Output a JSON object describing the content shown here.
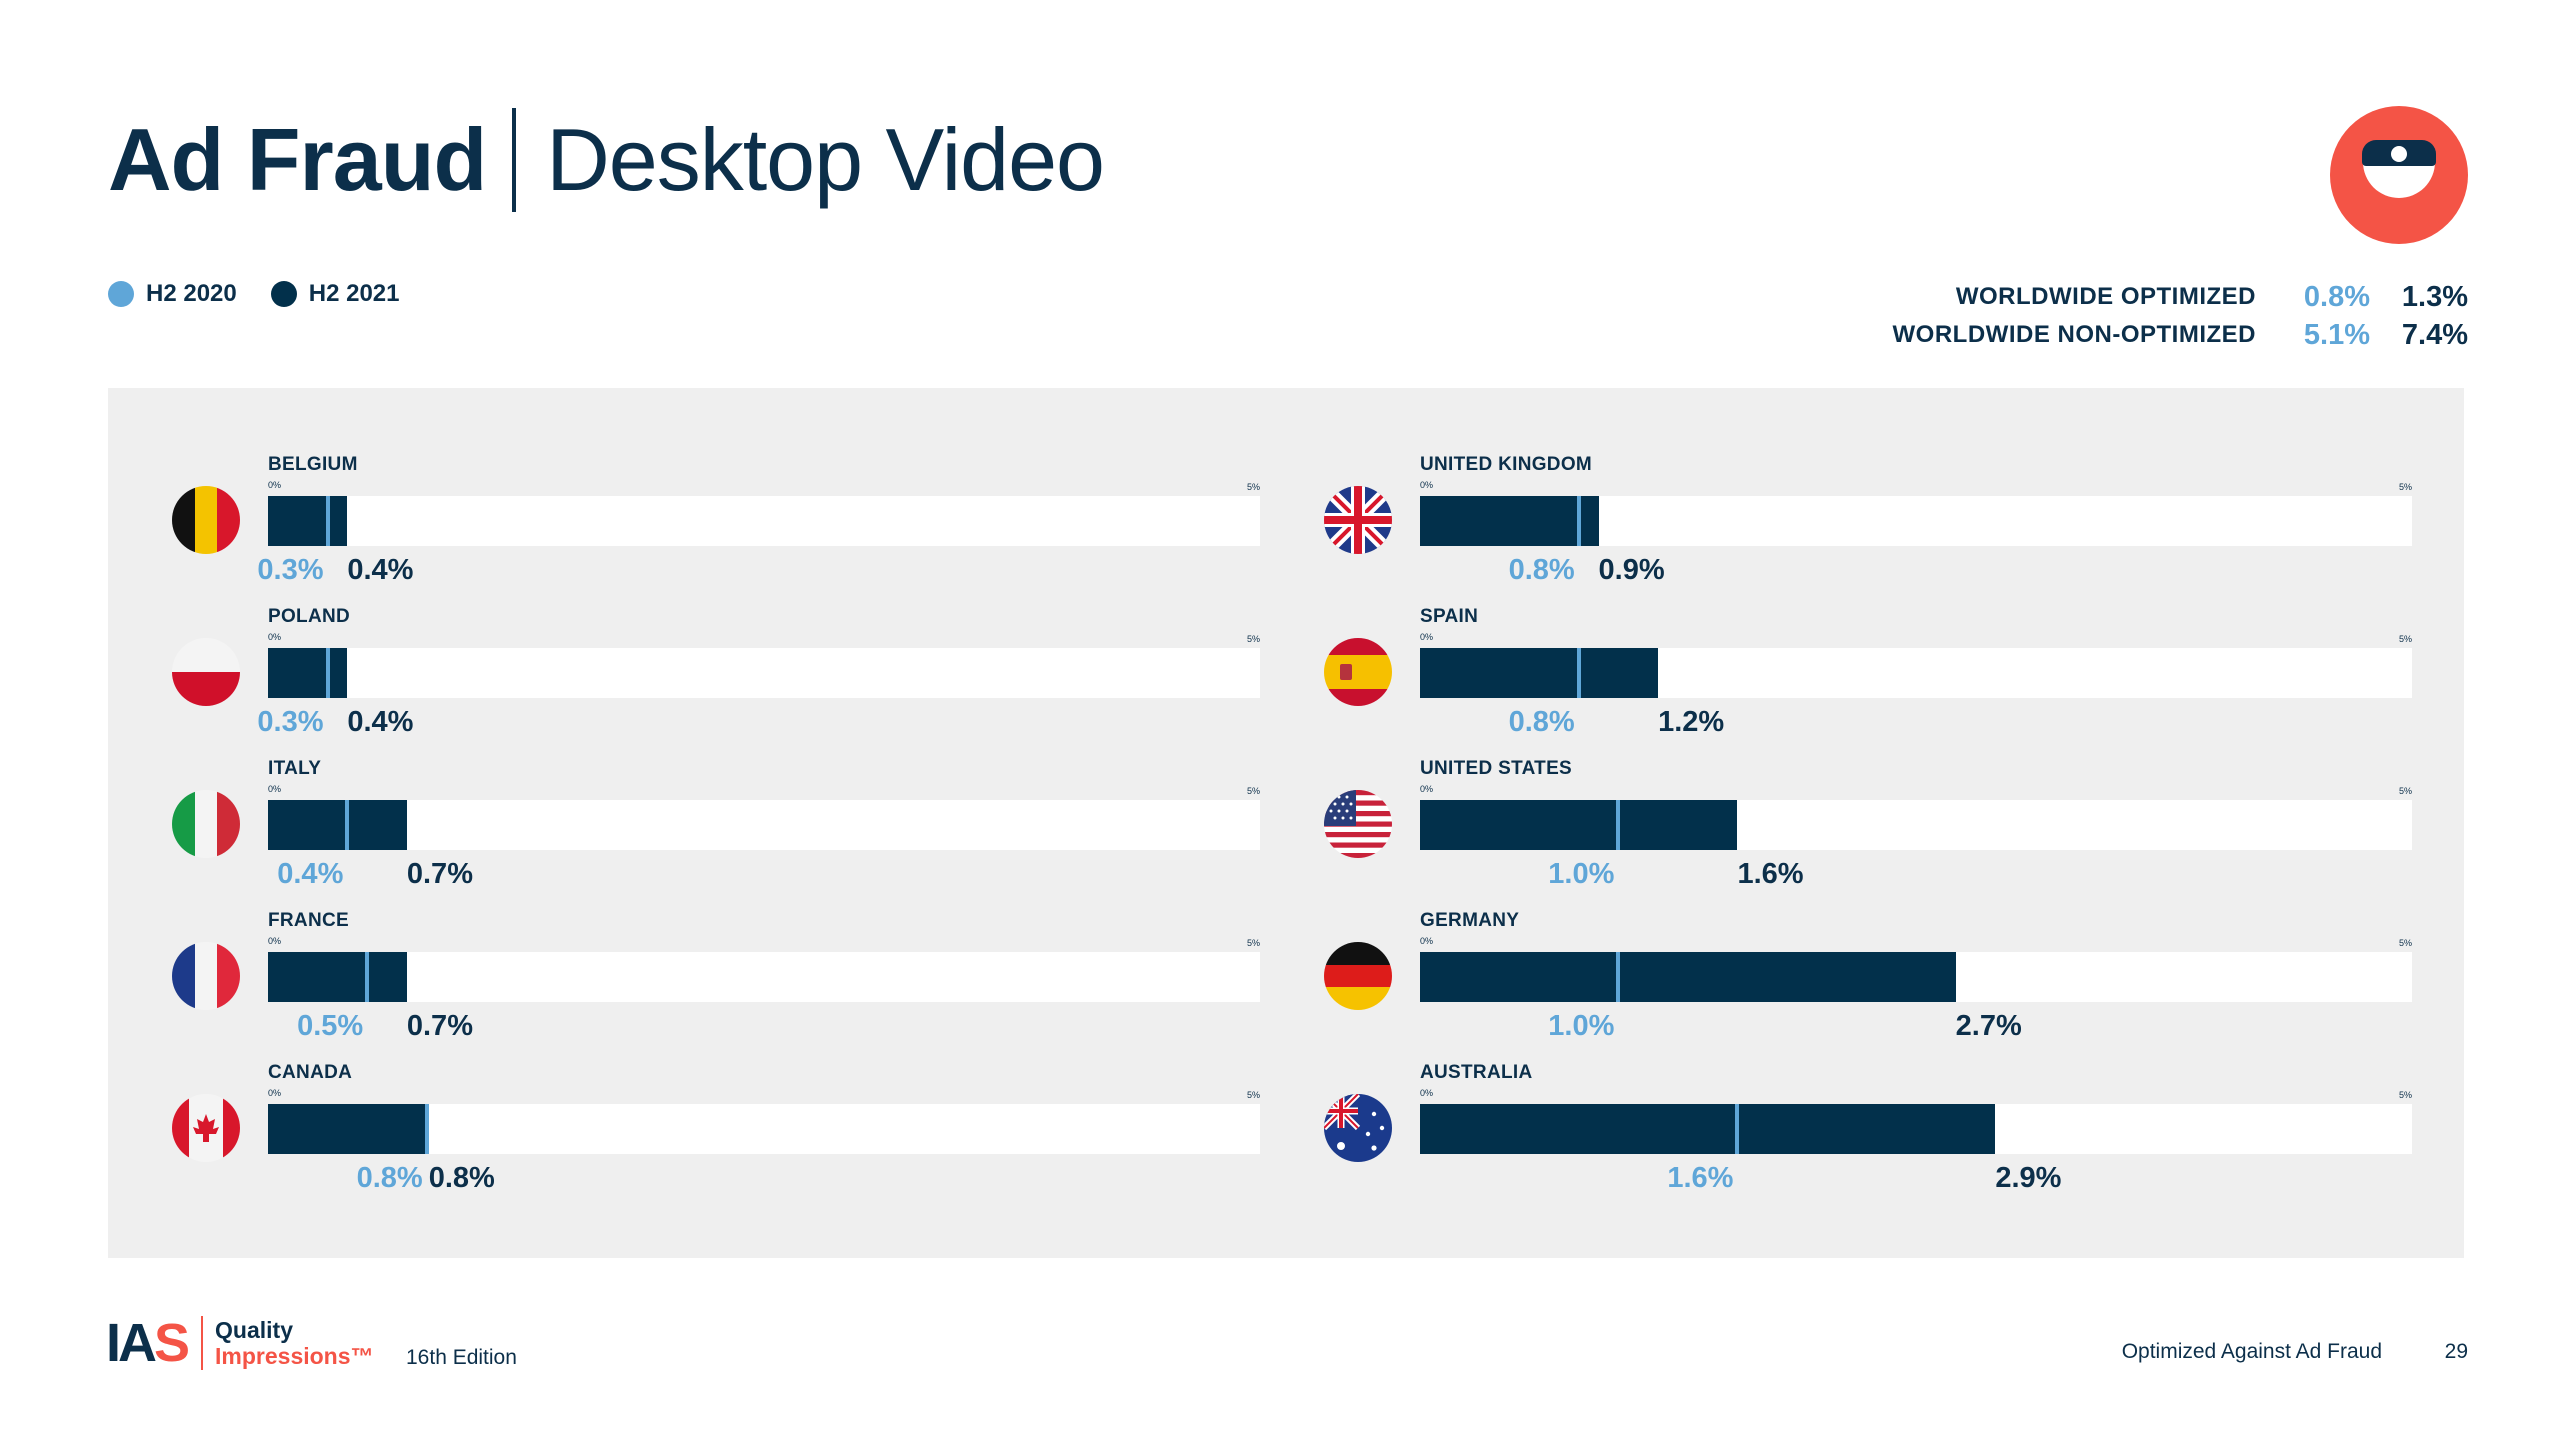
{
  "header": {
    "title_main": "Ad Fraud",
    "title_sub": "Desktop Video"
  },
  "legend": [
    {
      "label": "H2 2020",
      "color": "#5fa6d8"
    },
    {
      "label": "H2 2021",
      "color": "#02304b"
    }
  ],
  "worldwide": [
    {
      "label": "WORLDWIDE OPTIMIZED",
      "h2_2020": "0.8%",
      "h2_2021": "1.3%"
    },
    {
      "label": "WORLDWIDE NON-OPTIMIZED",
      "h2_2020": "5.1%",
      "h2_2021": "7.4%"
    }
  ],
  "chart_data": {
    "type": "bar",
    "axis": {
      "min_label": "0%",
      "max_label": "5%",
      "xlim": [
        0,
        5
      ]
    },
    "series": [
      {
        "name": "H2 2020",
        "color": "#5fa6d8"
      },
      {
        "name": "H2 2021",
        "color": "#02304b"
      }
    ],
    "columns": [
      [
        {
          "country": "BELGIUM",
          "flag": "belgium-flag-icon",
          "h2_2020": 0.3,
          "h2_2021": 0.4,
          "h2_2020_label": "0.3%",
          "h2_2021_label": "0.4%"
        },
        {
          "country": "POLAND",
          "flag": "poland-flag-icon",
          "h2_2020": 0.3,
          "h2_2021": 0.4,
          "h2_2020_label": "0.3%",
          "h2_2021_label": "0.4%"
        },
        {
          "country": "ITALY",
          "flag": "italy-flag-icon",
          "h2_2020": 0.4,
          "h2_2021": 0.7,
          "h2_2020_label": "0.4%",
          "h2_2021_label": "0.7%"
        },
        {
          "country": "FRANCE",
          "flag": "france-flag-icon",
          "h2_2020": 0.5,
          "h2_2021": 0.7,
          "h2_2020_label": "0.5%",
          "h2_2021_label": "0.7%"
        },
        {
          "country": "CANADA",
          "flag": "canada-flag-icon",
          "h2_2020": 0.8,
          "h2_2021": 0.8,
          "h2_2020_label": "0.8%",
          "h2_2021_label": "0.8%"
        }
      ],
      [
        {
          "country": "UNITED KINGDOM",
          "flag": "uk-flag-icon",
          "h2_2020": 0.8,
          "h2_2021": 0.9,
          "h2_2020_label": "0.8%",
          "h2_2021_label": "0.9%"
        },
        {
          "country": "SPAIN",
          "flag": "spain-flag-icon",
          "h2_2020": 0.8,
          "h2_2021": 1.2,
          "h2_2020_label": "0.8%",
          "h2_2021_label": "1.2%"
        },
        {
          "country": "UNITED STATES",
          "flag": "us-flag-icon",
          "h2_2020": 1.0,
          "h2_2021": 1.6,
          "h2_2020_label": "1.0%",
          "h2_2021_label": "1.6%"
        },
        {
          "country": "GERMANY",
          "flag": "germany-flag-icon",
          "h2_2020": 1.0,
          "h2_2021": 2.7,
          "h2_2020_label": "1.0%",
          "h2_2021_label": "2.7%"
        },
        {
          "country": "AUSTRALIA",
          "flag": "australia-flag-icon",
          "h2_2020": 1.6,
          "h2_2021": 2.9,
          "h2_2020_label": "1.6%",
          "h2_2021_label": "2.9%"
        }
      ]
    ]
  },
  "footer": {
    "logo_ia": "IA",
    "logo_s": "S",
    "brand_line1": "Quality",
    "brand_line2": "Impressions™",
    "edition": "16th Edition",
    "section": "Optimized Against Ad Fraud",
    "page": "29"
  },
  "mascot": "mascot-icon"
}
